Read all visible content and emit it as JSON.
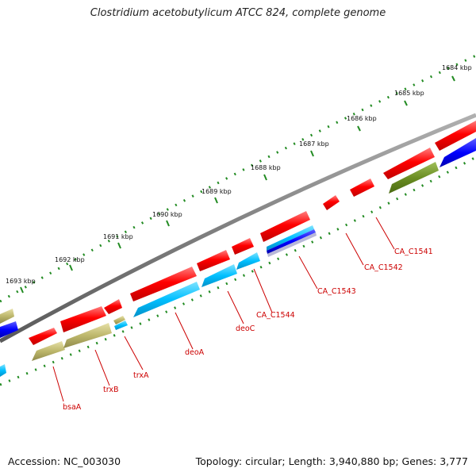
{
  "title": "Clostridium acetobutylicum ATCC 824, complete genome",
  "footer": {
    "accession": "Accession: NC_003030",
    "topology": "Topology: circular; Length: 3,940,880 bp; Genes: 3,777"
  },
  "scale": {
    "ticks": [
      "1684 kbp",
      "1685 kbp",
      "1686 kbp",
      "1687 kbp",
      "1688 kbp",
      "1689 kbp",
      "1690 kbp",
      "1691 kbp",
      "1692 kbp",
      "1693 kbp"
    ]
  },
  "genes": [
    "CA_C1541",
    "CA_C1542",
    "CA_C1543",
    "CA_C1544",
    "deoC",
    "deoA",
    "trxA",
    "trxB",
    "bsaA"
  ],
  "colors": {
    "forward_cds": "#ff0000",
    "reverse_cds_cyan": "#00bfff",
    "reverse_cds_khaki": "#bdb76b",
    "reverse_cds_olive": "#6b8e23",
    "reverse_cds_blue": "#0000ff",
    "backbone": "#808080",
    "ticks": "#228b22",
    "labels": "#cc0000"
  }
}
